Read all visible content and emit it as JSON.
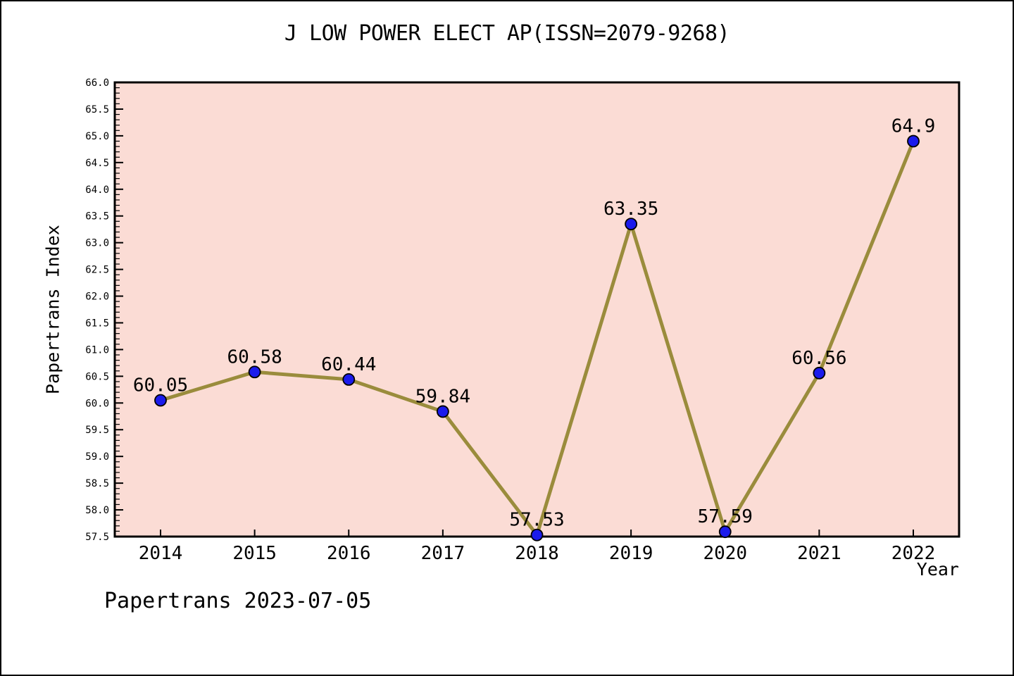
{
  "chart_data": {
    "type": "line",
    "title": "J LOW POWER ELECT AP(ISSN=2079-9268)",
    "xlabel": "Year",
    "ylabel": "Papertrans Index",
    "footer": "Papertrans 2023-07-05",
    "categories": [
      "2014",
      "2015",
      "2016",
      "2017",
      "2018",
      "2019",
      "2020",
      "2021",
      "2022"
    ],
    "values": [
      60.05,
      60.58,
      60.44,
      59.84,
      57.53,
      63.35,
      57.59,
      60.56,
      64.9
    ],
    "point_labels": [
      "60.05",
      "60.58",
      "60.44",
      "59.84",
      "57.53",
      "63.35",
      "57.59",
      "60.56",
      "64.9"
    ],
    "ylim": [
      57.5,
      66.0
    ],
    "y_major_step": 0.5,
    "y_minor_step": 0.1,
    "grid": false,
    "legend_position": "none",
    "colors": {
      "page_background": "#ffffff",
      "plot_background": "#fbdcd5",
      "line": "#9a8c3c",
      "marker_fill": "#1b1bec",
      "marker_edge": "#000000",
      "axis": "#000000",
      "text": "#000000"
    }
  }
}
